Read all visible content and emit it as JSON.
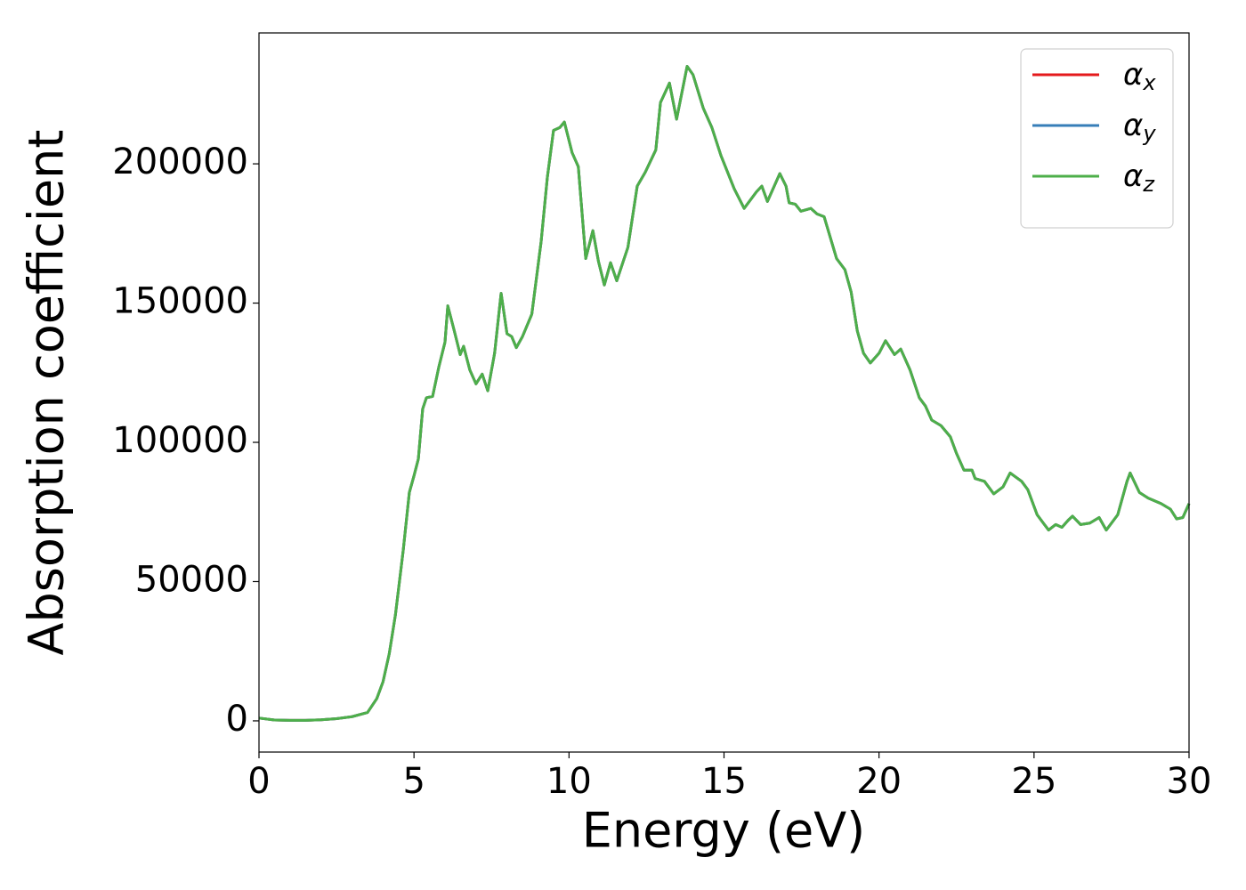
{
  "chart_data": {
    "type": "line",
    "xlabel": "Energy (eV)",
    "ylabel": "Absorption coefficient",
    "x": [
      0,
      0.5,
      1,
      1.5,
      2,
      2.5,
      3,
      3.5,
      3.8,
      4.0,
      4.2,
      4.4,
      4.65,
      4.85,
      5.0,
      5.14,
      5.28,
      5.4,
      5.6,
      5.8,
      6.0,
      6.09,
      6.3,
      6.49,
      6.6,
      6.8,
      7.0,
      7.2,
      7.38,
      7.6,
      7.81,
      8.0,
      8.15,
      8.3,
      8.5,
      8.8,
      9.1,
      9.3,
      9.5,
      9.7,
      9.85,
      10.1,
      10.3,
      10.54,
      10.77,
      10.95,
      11.14,
      11.34,
      11.54,
      11.9,
      12.2,
      12.46,
      12.8,
      12.95,
      13.24,
      13.47,
      13.81,
      14.0,
      14.33,
      14.61,
      14.9,
      15.33,
      15.65,
      16.05,
      16.22,
      16.4,
      16.8,
      17.0,
      17.1,
      17.3,
      17.48,
      17.8,
      18.0,
      18.23,
      18.63,
      18.9,
      19.1,
      19.3,
      19.5,
      19.72,
      20.0,
      20.21,
      20.5,
      20.7,
      21.0,
      21.3,
      21.5,
      21.7,
      22.0,
      22.3,
      22.5,
      22.74,
      23.0,
      23.1,
      23.4,
      23.7,
      24.0,
      24.23,
      24.6,
      24.8,
      25.1,
      25.3,
      25.47,
      25.7,
      25.9,
      26.1,
      26.24,
      26.5,
      26.8,
      27.1,
      27.33,
      27.7,
      28.0,
      28.1,
      28.4,
      28.68,
      29.1,
      29.4,
      29.6,
      29.8,
      30
    ],
    "series": [
      {
        "name": "αx",
        "color": "#e41a1c",
        "values": [
          1000,
          300,
          200,
          200,
          400,
          800,
          1500,
          3000,
          8000,
          14000,
          24000,
          38000,
          61000,
          82000,
          88000,
          94000,
          112000,
          116000,
          116500,
          127000,
          136000,
          149000,
          140000,
          131500,
          134500,
          126000,
          121000,
          124500,
          118500,
          132000,
          153500,
          139000,
          138000,
          134000,
          138000,
          146000,
          172000,
          195000,
          212000,
          213000,
          215000,
          204000,
          199000,
          166000,
          176000,
          165000,
          156500,
          164500,
          158000,
          170000,
          192000,
          197000,
          205000,
          222000,
          229000,
          216000,
          235000,
          232000,
          220000,
          213000,
          203000,
          191000,
          184000,
          190000,
          192000,
          186500,
          196500,
          192000,
          186000,
          185500,
          183000,
          184000,
          182000,
          181000,
          166000,
          162000,
          154000,
          140000,
          132000,
          128500,
          132000,
          136500,
          131500,
          133500,
          126000,
          116000,
          113000,
          108000,
          106000,
          102000,
          96000,
          90000,
          90000,
          87000,
          86000,
          81500,
          84000,
          89000,
          86000,
          83000,
          74000,
          71000,
          68500,
          70500,
          69500,
          72000,
          73500,
          70500,
          71000,
          73000,
          68500,
          74000,
          86000,
          89000,
          82000,
          80000,
          78000,
          76000,
          72500,
          73000,
          78000
        ]
      },
      {
        "name": "αy",
        "color": "#377eb8",
        "values": [
          1000,
          300,
          200,
          200,
          400,
          800,
          1500,
          3000,
          8000,
          14000,
          24000,
          38000,
          61000,
          82000,
          88000,
          94000,
          112000,
          116000,
          116500,
          127000,
          136000,
          149000,
          140000,
          131500,
          134500,
          126000,
          121000,
          124500,
          118500,
          132000,
          153500,
          139000,
          138000,
          134000,
          138000,
          146000,
          172000,
          195000,
          212000,
          213000,
          215000,
          204000,
          199000,
          166000,
          176000,
          165000,
          156500,
          164500,
          158000,
          170000,
          192000,
          197000,
          205000,
          222000,
          229000,
          216000,
          235000,
          232000,
          220000,
          213000,
          203000,
          191000,
          184000,
          190000,
          192000,
          186500,
          196500,
          192000,
          186000,
          185500,
          183000,
          184000,
          182000,
          181000,
          166000,
          162000,
          154000,
          140000,
          132000,
          128500,
          132000,
          136500,
          131500,
          133500,
          126000,
          116000,
          113000,
          108000,
          106000,
          102000,
          96000,
          90000,
          90000,
          87000,
          86000,
          81500,
          84000,
          89000,
          86000,
          83000,
          74000,
          71000,
          68500,
          70500,
          69500,
          72000,
          73500,
          70500,
          71000,
          73000,
          68500,
          74000,
          86000,
          89000,
          82000,
          80000,
          78000,
          76000,
          72500,
          73000,
          78000
        ]
      },
      {
        "name": "αz",
        "color": "#4daf4a",
        "values": [
          1000,
          300,
          200,
          200,
          400,
          800,
          1500,
          3000,
          8000,
          14000,
          24000,
          38000,
          61000,
          82000,
          88000,
          94000,
          112000,
          116000,
          116500,
          127000,
          136000,
          149000,
          140000,
          131500,
          134500,
          126000,
          121000,
          124500,
          118500,
          132000,
          153500,
          139000,
          138000,
          134000,
          138000,
          146000,
          172000,
          195000,
          212000,
          213000,
          215000,
          204000,
          199000,
          166000,
          176000,
          165000,
          156500,
          164500,
          158000,
          170000,
          192000,
          197000,
          205000,
          222000,
          229000,
          216000,
          235000,
          232000,
          220000,
          213000,
          203000,
          191000,
          184000,
          190000,
          192000,
          186500,
          196500,
          192000,
          186000,
          185500,
          183000,
          184000,
          182000,
          181000,
          166000,
          162000,
          154000,
          140000,
          132000,
          128500,
          132000,
          136500,
          131500,
          133500,
          126000,
          116000,
          113000,
          108000,
          106000,
          102000,
          96000,
          90000,
          90000,
          87000,
          86000,
          81500,
          84000,
          89000,
          86000,
          83000,
          74000,
          71000,
          68500,
          70500,
          69500,
          72000,
          73500,
          70500,
          71000,
          73000,
          68500,
          74000,
          86000,
          89000,
          82000,
          80000,
          78000,
          76000,
          72500,
          73000,
          78000
        ]
      }
    ],
    "xlim": [
      0,
      30
    ],
    "xticks": [
      0,
      5,
      10,
      15,
      20,
      25,
      30
    ],
    "ylim": [
      -11200,
      247000
    ],
    "yticks": [
      0,
      50000,
      100000,
      150000,
      200000
    ],
    "legend": "upper right",
    "grid": false
  }
}
